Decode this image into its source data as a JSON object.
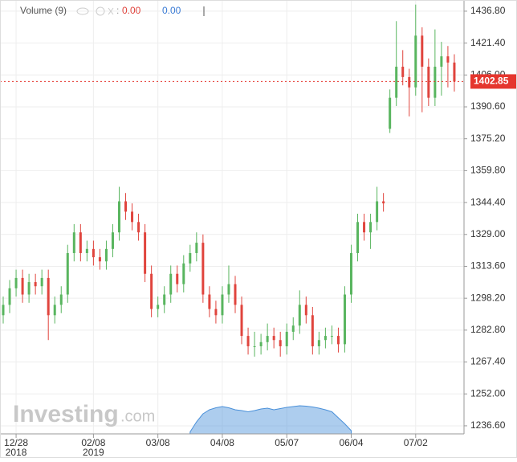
{
  "chart_data": {
    "type": "candlestick",
    "legend": {
      "name": "Volume (9)",
      "value_1": "0.00",
      "value_2": "0.00"
    },
    "watermark": {
      "brand": "Investing",
      "suffix": ".com"
    },
    "up_color": "#59b55f",
    "down_color": "#e0443d",
    "volume_color": "#4a90d9",
    "ylim": [
      1232.7,
      1442.2
    ],
    "yticks": [
      {
        "value": 1436.8,
        "label": "1436.80"
      },
      {
        "value": 1421.4,
        "label": "1421.40"
      },
      {
        "value": 1406,
        "label": "1406.00"
      },
      {
        "value": 1390.6,
        "label": "1390.60"
      },
      {
        "value": 1375.2,
        "label": "1375.20"
      },
      {
        "value": 1359.8,
        "label": "1359.80"
      },
      {
        "value": 1344.4,
        "label": "1344.40"
      },
      {
        "value": 1329,
        "label": "1329.00"
      },
      {
        "value": 1313.6,
        "label": "1313.60"
      },
      {
        "value": 1298.2,
        "label": "1298.20"
      },
      {
        "value": 1282.8,
        "label": "1282.80"
      },
      {
        "value": 1267.4,
        "label": "1267.40"
      },
      {
        "value": 1252,
        "label": "1252.00"
      },
      {
        "value": 1236.6,
        "label": "1236.60"
      }
    ],
    "xlim": [
      0,
      72
    ],
    "xticks": [
      {
        "value": 2,
        "label": "12/28",
        "year": "2018"
      },
      {
        "value": 14,
        "label": "02/08",
        "year": "2019"
      },
      {
        "value": 24,
        "label": "03/08"
      },
      {
        "value": 34,
        "label": "04/08"
      },
      {
        "value": 44,
        "label": "05/07"
      },
      {
        "value": 54,
        "label": "06/04"
      },
      {
        "value": 64,
        "label": "07/02"
      }
    ],
    "grid": true,
    "last_price": 1402.85,
    "ohlc": [
      [
        1290,
        1299,
        1286,
        1295
      ],
      [
        1295,
        1307,
        1291,
        1303
      ],
      [
        1303,
        1312,
        1299,
        1308
      ],
      [
        1308,
        1312,
        1296,
        1300
      ],
      [
        1300,
        1310,
        1296,
        1306
      ],
      [
        1306,
        1310,
        1300,
        1304
      ],
      [
        1304,
        1312,
        1300,
        1308
      ],
      [
        1308,
        1312,
        1278,
        1290
      ],
      [
        1290,
        1299,
        1286,
        1295
      ],
      [
        1295,
        1304,
        1291,
        1300
      ],
      [
        1300,
        1324,
        1296,
        1320
      ],
      [
        1320,
        1334,
        1316,
        1330
      ],
      [
        1330,
        1334,
        1316,
        1320
      ],
      [
        1320,
        1326,
        1316,
        1322
      ],
      [
        1322,
        1326,
        1314,
        1318
      ],
      [
        1318,
        1322,
        1312,
        1316
      ],
      [
        1316,
        1326,
        1312,
        1322
      ],
      [
        1322,
        1334,
        1318,
        1330
      ],
      [
        1330,
        1352,
        1326,
        1345
      ],
      [
        1345,
        1349,
        1336,
        1340
      ],
      [
        1340,
        1344,
        1331,
        1335
      ],
      [
        1335,
        1339,
        1326,
        1330
      ],
      [
        1330,
        1334,
        1306,
        1310
      ],
      [
        1310,
        1314,
        1289,
        1293
      ],
      [
        1293,
        1299,
        1289,
        1295
      ],
      [
        1295,
        1304,
        1291,
        1300
      ],
      [
        1300,
        1314,
        1296,
        1310
      ],
      [
        1310,
        1314,
        1301,
        1305
      ],
      [
        1305,
        1319,
        1301,
        1315
      ],
      [
        1315,
        1324,
        1311,
        1320
      ],
      [
        1320,
        1330,
        1316,
        1325
      ],
      [
        1325,
        1329,
        1296,
        1300
      ],
      [
        1300,
        1304,
        1289,
        1293
      ],
      [
        1293,
        1297,
        1286,
        1290
      ],
      [
        1290,
        1304,
        1286,
        1300
      ],
      [
        1300,
        1314,
        1296,
        1305
      ],
      [
        1305,
        1309,
        1291,
        1295
      ],
      [
        1295,
        1299,
        1276,
        1280
      ],
      [
        1280,
        1284,
        1271,
        1275
      ],
      [
        1275,
        1282,
        1270,
        1275
      ],
      [
        1275,
        1281,
        1271,
        1277
      ],
      [
        1277,
        1286,
        1273,
        1280
      ],
      [
        1280,
        1284,
        1274,
        1278
      ],
      [
        1278,
        1282,
        1270,
        1275
      ],
      [
        1275,
        1286,
        1271,
        1282
      ],
      [
        1282,
        1289,
        1278,
        1285
      ],
      [
        1285,
        1302,
        1281,
        1295
      ],
      [
        1295,
        1299,
        1286,
        1290
      ],
      [
        1290,
        1294,
        1271,
        1275
      ],
      [
        1275,
        1282,
        1271,
        1278
      ],
      [
        1278,
        1284,
        1274,
        1280
      ],
      [
        1280,
        1285,
        1276,
        1280
      ],
      [
        1280,
        1284,
        1272,
        1276
      ],
      [
        1276,
        1304,
        1272,
        1300
      ],
      [
        1300,
        1324,
        1296,
        1320
      ],
      [
        1320,
        1339,
        1316,
        1335
      ],
      [
        1335,
        1339,
        1326,
        1330
      ],
      [
        1330,
        1339,
        1322,
        1335
      ],
      [
        1335,
        1352,
        1331,
        1345
      ],
      [
        1345,
        1349,
        1340,
        1344
      ],
      [
        1380,
        1399,
        1378,
        1395
      ],
      [
        1395,
        1432,
        1391,
        1410
      ],
      [
        1410,
        1418,
        1401,
        1405
      ],
      [
        1405,
        1409,
        1386,
        1400
      ],
      [
        1400,
        1440,
        1396,
        1425
      ],
      [
        1425,
        1429,
        1388,
        1410
      ],
      [
        1410,
        1414,
        1391,
        1395
      ],
      [
        1395,
        1428,
        1391,
        1410
      ],
      [
        1410,
        1422,
        1396,
        1415
      ],
      [
        1415,
        1420,
        1400,
        1412
      ],
      [
        1412,
        1416,
        1398,
        1402.85
      ]
    ],
    "volume_lim": [
      0,
      100
    ],
    "volume": [
      null,
      null,
      null,
      null,
      null,
      null,
      null,
      null,
      null,
      null,
      null,
      null,
      null,
      null,
      null,
      null,
      null,
      null,
      null,
      null,
      null,
      null,
      null,
      null,
      null,
      null,
      null,
      null,
      null,
      5,
      30,
      50,
      60,
      65,
      68,
      65,
      60,
      58,
      55,
      58,
      62,
      64,
      60,
      63,
      66,
      68,
      70,
      69,
      67,
      64,
      60,
      55,
      40,
      25,
      8,
      null,
      null,
      null,
      null,
      null,
      null,
      null,
      null,
      null,
      null,
      null,
      null,
      null,
      null,
      null,
      null
    ]
  }
}
